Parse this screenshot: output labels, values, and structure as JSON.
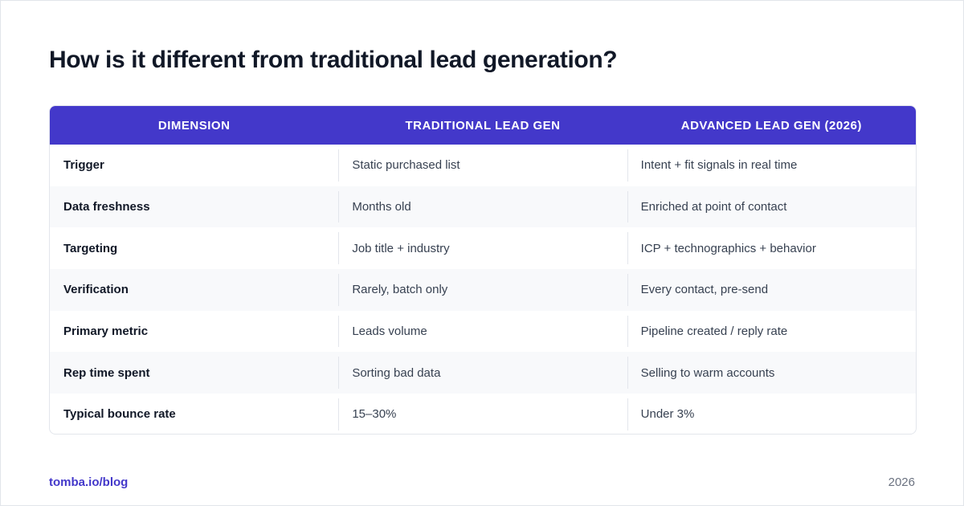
{
  "title": "How is it different from traditional lead generation?",
  "table": {
    "headers": [
      "DIMENSION",
      "TRADITIONAL LEAD GEN",
      "ADVANCED LEAD GEN (2026)"
    ],
    "rows": [
      [
        "Trigger",
        "Static purchased list",
        "Intent + fit signals in real time"
      ],
      [
        "Data freshness",
        "Months old",
        "Enriched at point of contact"
      ],
      [
        "Targeting",
        "Job title + industry",
        "ICP + technographics + behavior"
      ],
      [
        "Verification",
        "Rarely, batch only",
        "Every contact, pre-send"
      ],
      [
        "Primary metric",
        "Leads volume",
        "Pipeline created / reply rate"
      ],
      [
        "Rep time spent",
        "Sorting bad data",
        "Selling to warm accounts"
      ],
      [
        "Typical bounce rate",
        "15–30%",
        "Under 3%"
      ]
    ]
  },
  "footer": {
    "link": "tomba.io/blog",
    "year": "2026"
  },
  "colors": {
    "accent": "#4338ca",
    "title": "#111827",
    "row_alt": "#f8f9fb"
  }
}
